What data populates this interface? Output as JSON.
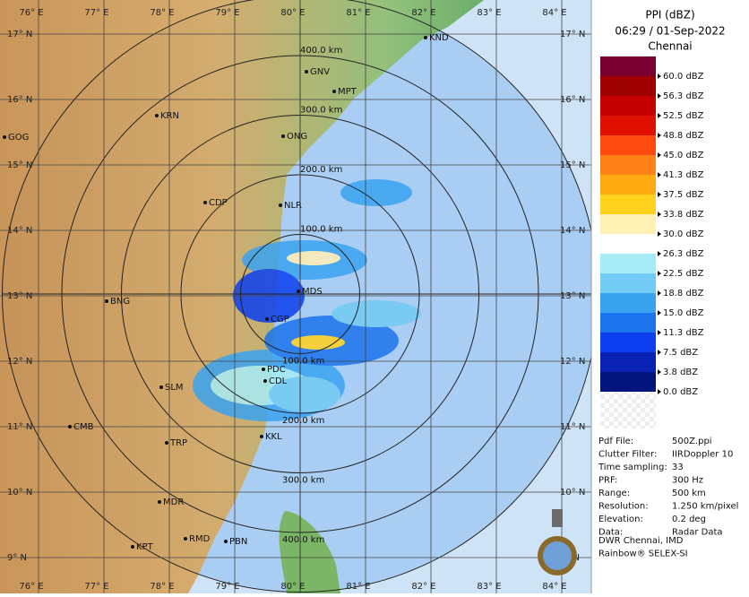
{
  "header": {
    "product": "PPI (dBZ)",
    "time": "06:29 / 01-Sep-2022",
    "station": "Chennai"
  },
  "longitudes": [
    "76° E",
    "77° E",
    "78° E",
    "79° E",
    "80° E",
    "81° E",
    "82° E",
    "83° E",
    "84° E"
  ],
  "latitudes": [
    "17° N",
    "16° N",
    "15° N",
    "14° N",
    "13° N",
    "12° N",
    "11° N",
    "10° N",
    "9° N"
  ],
  "rings": [
    "100.0 km",
    "200.0 km",
    "300.0 km",
    "400.0 km"
  ],
  "cities": [
    "KND",
    "GNV",
    "MPT",
    "KRN",
    "GOG",
    "ONG",
    "CDP",
    "NLR",
    "MDS",
    "BNG",
    "CGP",
    "PDC",
    "CDL",
    "SLM",
    "CMB",
    "TRP",
    "KKL",
    "MDR",
    "RMD",
    "PBN",
    "KPT"
  ],
  "legend": [
    {
      "label": "60.0 dBZ",
      "color": "#7a0032"
    },
    {
      "label": "56.3 dBZ",
      "color": "#a00000"
    },
    {
      "label": "52.5 dBZ",
      "color": "#c40000"
    },
    {
      "label": "48.8 dBZ",
      "color": "#e01000"
    },
    {
      "label": "45.0 dBZ",
      "color": "#ff4a10"
    },
    {
      "label": "41.3 dBZ",
      "color": "#ff8218"
    },
    {
      "label": "37.5 dBZ",
      "color": "#ffaa10"
    },
    {
      "label": "33.8 dBZ",
      "color": "#ffd21e"
    },
    {
      "label": "30.0 dBZ",
      "color": "#fff0b4"
    },
    {
      "label": "26.3 dBZ",
      "color": "#ffffff"
    },
    {
      "label": "22.5 dBZ",
      "color": "#a6ecf6"
    },
    {
      "label": "18.8 dBZ",
      "color": "#72cbf4"
    },
    {
      "label": "15.0 dBZ",
      "color": "#3aa3f0"
    },
    {
      "label": "11.3 dBZ",
      "color": "#1b74ec"
    },
    {
      "label": "7.5 dBZ",
      "color": "#0c3ff0"
    },
    {
      "label": "3.8 dBZ",
      "color": "#0a22b4"
    },
    {
      "label": "0.0 dBZ",
      "color": "#03157c"
    }
  ],
  "info": [
    [
      "Pdf File:",
      "500Z.ppi"
    ],
    [
      "Clutter Filter:",
      "IIRDoppler 10"
    ],
    [
      "Time sampling:",
      "33"
    ],
    [
      "PRF:",
      "300 Hz"
    ],
    [
      "Range:",
      "500 km"
    ],
    [
      "Resolution:",
      "1.250 km/pixel"
    ],
    [
      "Elevation:",
      "0.2 deg"
    ],
    [
      "Data:",
      "Radar Data"
    ]
  ],
  "credits": [
    "DWR Chennai, IMD",
    "Rainbow® SELEX-SI"
  ]
}
